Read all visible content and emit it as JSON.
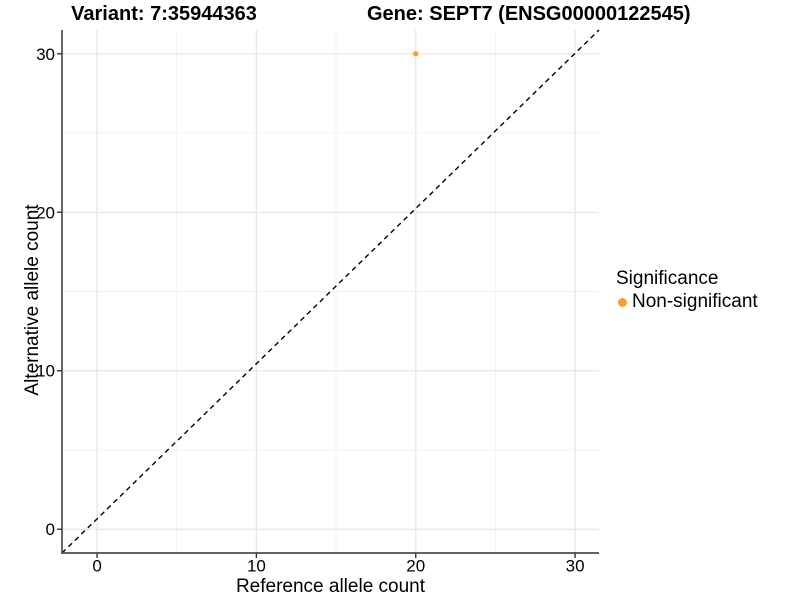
{
  "chart_data": {
    "type": "scatter",
    "title_left": "Variant: 7:35944363",
    "title_right": "Gene: SEPT7 (ENSG00000122545)",
    "xlabel": "Reference allele count",
    "ylabel": "Alternative allele count",
    "x_ticks": [
      0,
      10,
      20,
      30
    ],
    "y_ticks": [
      0,
      10,
      20,
      30
    ],
    "x_minor_ticks": [
      5,
      15,
      25
    ],
    "y_minor_ticks": [
      5,
      15,
      25
    ],
    "xlim": [
      -2.2,
      31.5
    ],
    "ylim": [
      -1.5,
      31.5
    ],
    "grid": true,
    "points": [
      {
        "x": 20,
        "y": 30,
        "series": "Non-significant"
      }
    ],
    "diagonal": {
      "type": "identity",
      "style": "dashed",
      "color": "#000000"
    },
    "legend": {
      "title": "Significance",
      "position": "right",
      "entries": [
        {
          "label": "Non-significant",
          "color": "#FA9E2B"
        }
      ]
    },
    "colors": {
      "point": "#FA9E2B",
      "grid_major": "#E6E6E6",
      "grid_minor": "#F3F3F3",
      "axis_line": "#4D4D4D",
      "tick_mark": "#333333",
      "text": "#000000",
      "background": "#FFFFFF"
    }
  }
}
